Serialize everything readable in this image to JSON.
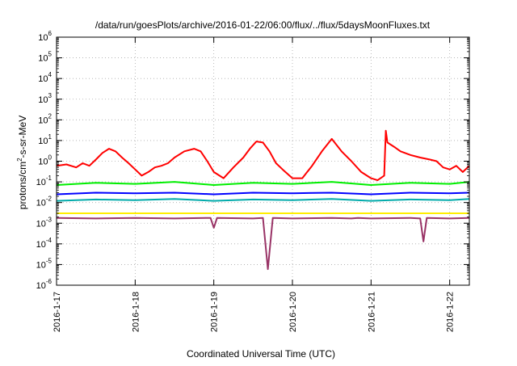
{
  "chart_data": {
    "type": "line",
    "title": "/data/run/goesPlots/archive/2016-01-22/06:00/flux/../flux/5daysMoonFluxes.txt",
    "xlabel": "Coordinated Universal Time (UTC)",
    "ylabel": {
      "prefix": "protons/cm",
      "sup": "2",
      "suffix": "-s-sr-MeV"
    },
    "xlim": [
      "2016-01-17T00:00",
      "2016-01-22T06:00"
    ],
    "x_ticks": [
      "2016-1-17",
      "2016-1-18",
      "2016-1-19",
      "2016-1-20",
      "2016-1-21",
      "2016-1-22"
    ],
    "y_scale": "log",
    "ylim": [
      1e-06,
      1000000.0
    ],
    "y_ticks": [
      {
        "base": "10",
        "exp": "-6"
      },
      {
        "base": "10",
        "exp": "-5"
      },
      {
        "base": "10",
        "exp": "-4"
      },
      {
        "base": "10",
        "exp": "-3"
      },
      {
        "base": "10",
        "exp": "-2"
      },
      {
        "base": "10",
        "exp": "-1"
      },
      {
        "base": "10",
        "exp": "0"
      },
      {
        "base": "10",
        "exp": "1"
      },
      {
        "base": "10",
        "exp": "2"
      },
      {
        "base": "10",
        "exp": "3"
      },
      {
        "base": "10",
        "exp": "4"
      },
      {
        "base": "10",
        "exp": "5"
      },
      {
        "base": "10",
        "exp": "6"
      }
    ],
    "grid": true,
    "series": [
      {
        "color": "#ff0000",
        "x": [
          "2016-01-17T00:00",
          "2016-01-17T03:00",
          "2016-01-17T06:00",
          "2016-01-17T08:00",
          "2016-01-17T10:00",
          "2016-01-17T12:00",
          "2016-01-17T14:00",
          "2016-01-17T16:00",
          "2016-01-17T18:00",
          "2016-01-17T20:00",
          "2016-01-17T22:00",
          "2016-01-18T00:00",
          "2016-01-18T02:00",
          "2016-01-18T04:00",
          "2016-01-18T06:00",
          "2016-01-18T08:00",
          "2016-01-18T10:00",
          "2016-01-18T12:00",
          "2016-01-18T15:00",
          "2016-01-18T18:00",
          "2016-01-18T20:00",
          "2016-01-18T22:00",
          "2016-01-19T00:00",
          "2016-01-19T03:00",
          "2016-01-19T06:00",
          "2016-01-19T09:00",
          "2016-01-19T11:00",
          "2016-01-19T13:00",
          "2016-01-19T15:00",
          "2016-01-19T17:00",
          "2016-01-19T19:00",
          "2016-01-19T21:00",
          "2016-01-20T00:00",
          "2016-01-20T03:00",
          "2016-01-20T06:00",
          "2016-01-20T09:00",
          "2016-01-20T12:00",
          "2016-01-20T15:00",
          "2016-01-20T18:00",
          "2016-01-20T21:00",
          "2016-01-21T00:00",
          "2016-01-21T02:00",
          "2016-01-21T04:00",
          "2016-01-21T04:30",
          "2016-01-21T05:00",
          "2016-01-21T07:00",
          "2016-01-21T09:00",
          "2016-01-21T12:00",
          "2016-01-21T15:00",
          "2016-01-21T18:00",
          "2016-01-21T20:00",
          "2016-01-21T22:00",
          "2016-01-22T00:00",
          "2016-01-22T02:00",
          "2016-01-22T04:00",
          "2016-01-22T06:00"
        ],
        "values": [
          0.6,
          0.7,
          0.5,
          0.8,
          0.6,
          1.2,
          2.5,
          4,
          3,
          1.5,
          0.8,
          0.4,
          0.2,
          0.3,
          0.5,
          0.6,
          0.8,
          1.5,
          3,
          4,
          3,
          1,
          0.3,
          0.15,
          0.5,
          1.5,
          4,
          9,
          8,
          3,
          0.8,
          0.4,
          0.15,
          0.15,
          0.6,
          3,
          12,
          3,
          1,
          0.3,
          0.15,
          0.12,
          0.2,
          30,
          8,
          5,
          3,
          2,
          1.5,
          1.2,
          1,
          0.5,
          0.4,
          0.6,
          0.3,
          0.6
        ]
      },
      {
        "color": "#00ee00",
        "x": [
          "2016-01-17T00:00",
          "2016-01-17T12:00",
          "2016-01-18T00:00",
          "2016-01-18T12:00",
          "2016-01-19T00:00",
          "2016-01-19T12:00",
          "2016-01-20T00:00",
          "2016-01-20T12:00",
          "2016-01-21T00:00",
          "2016-01-21T12:00",
          "2016-01-22T00:00",
          "2016-01-22T06:00"
        ],
        "values": [
          0.07,
          0.09,
          0.08,
          0.1,
          0.07,
          0.09,
          0.08,
          0.1,
          0.07,
          0.09,
          0.08,
          0.1
        ]
      },
      {
        "color": "#0000ff",
        "x": [
          "2016-01-17T00:00",
          "2016-01-17T12:00",
          "2016-01-18T00:00",
          "2016-01-18T12:00",
          "2016-01-19T00:00",
          "2016-01-19T12:00",
          "2016-01-20T00:00",
          "2016-01-20T12:00",
          "2016-01-21T00:00",
          "2016-01-21T12:00",
          "2016-01-22T00:00",
          "2016-01-22T06:00"
        ],
        "values": [
          0.025,
          0.03,
          0.028,
          0.03,
          0.025,
          0.03,
          0.028,
          0.03,
          0.025,
          0.03,
          0.028,
          0.03
        ]
      },
      {
        "color": "#00aaaa",
        "x": [
          "2016-01-17T00:00",
          "2016-01-17T12:00",
          "2016-01-18T00:00",
          "2016-01-18T12:00",
          "2016-01-19T00:00",
          "2016-01-19T12:00",
          "2016-01-20T00:00",
          "2016-01-20T12:00",
          "2016-01-21T00:00",
          "2016-01-21T12:00",
          "2016-01-22T00:00",
          "2016-01-22T06:00"
        ],
        "values": [
          0.012,
          0.014,
          0.013,
          0.015,
          0.012,
          0.014,
          0.013,
          0.015,
          0.012,
          0.014,
          0.013,
          0.015
        ]
      },
      {
        "color": "#ffee00",
        "x": [
          "2016-01-17T00:00",
          "2016-01-17T12:00",
          "2016-01-18T00:00",
          "2016-01-18T12:00",
          "2016-01-19T00:00",
          "2016-01-19T12:00",
          "2016-01-20T00:00",
          "2016-01-20T12:00",
          "2016-01-21T00:00",
          "2016-01-21T12:00",
          "2016-01-22T00:00",
          "2016-01-22T06:00"
        ],
        "values": [
          0.003,
          0.003,
          0.003,
          0.003,
          0.003,
          0.003,
          0.003,
          0.003,
          0.003,
          0.003,
          0.003,
          0.003
        ]
      },
      {
        "color": "#993366",
        "x": [
          "2016-01-17T00:00",
          "2016-01-17T12:00",
          "2016-01-18T00:00",
          "2016-01-18T12:00",
          "2016-01-18T23:00",
          "2016-01-19T00:00",
          "2016-01-19T01:00",
          "2016-01-19T12:00",
          "2016-01-19T15:00",
          "2016-01-19T16:30",
          "2016-01-19T18:00",
          "2016-01-20T00:00",
          "2016-01-20T12:00",
          "2016-01-20T18:00",
          "2016-01-20T20:00",
          "2016-01-21T00:00",
          "2016-01-21T12:00",
          "2016-01-21T15:00",
          "2016-01-21T16:00",
          "2016-01-21T17:00",
          "2016-01-22T00:00",
          "2016-01-22T06:00"
        ],
        "values": [
          0.0018,
          0.0017,
          0.0018,
          0.0017,
          0.0018,
          0.0006,
          0.0018,
          0.0017,
          0.0018,
          6e-06,
          0.0018,
          0.0017,
          0.0018,
          0.0017,
          0.0018,
          0.0017,
          0.0018,
          0.0017,
          0.00013,
          0.0018,
          0.0017,
          0.0018
        ]
      }
    ]
  }
}
